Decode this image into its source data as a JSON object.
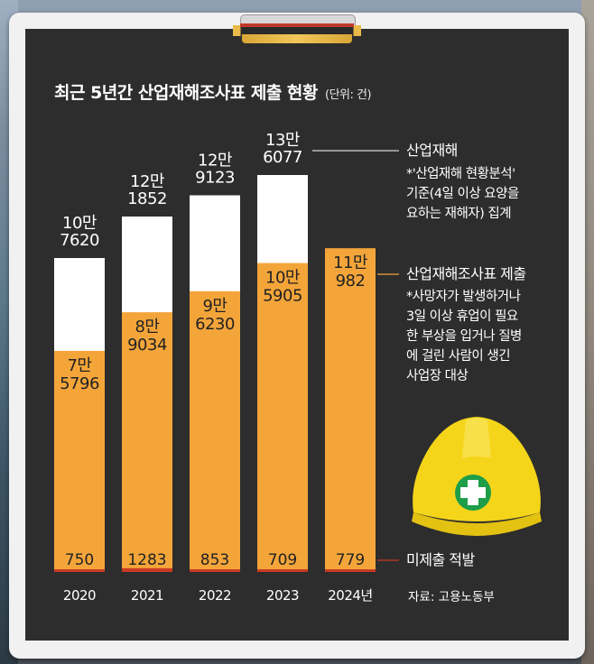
{
  "chart_data": {
    "type": "bar",
    "title": "최근 5년간 산업재해조사표 제출 현황",
    "unit": "(단위: 건)",
    "categories": [
      "2020",
      "2021",
      "2022",
      "2023",
      "2024년"
    ],
    "series": [
      {
        "name": "산업재해",
        "values": [
          107620,
          121852,
          129123,
          136077,
          null
        ],
        "labels": [
          [
            "10만",
            "7620"
          ],
          [
            "12만",
            "1852"
          ],
          [
            "12만",
            "9123"
          ],
          [
            "13만",
            "6077"
          ],
          null
        ]
      },
      {
        "name": "산업재해조사표 제출",
        "values": [
          75796,
          89034,
          96230,
          105905,
          110982
        ],
        "labels": [
          [
            "7만",
            "5796"
          ],
          [
            "8만",
            "9034"
          ],
          [
            "9만",
            "6230"
          ],
          [
            "10만",
            "5905"
          ],
          [
            "11만",
            "982"
          ]
        ]
      },
      {
        "name": "미제출 적발",
        "values": [
          750,
          1283,
          853,
          709,
          779
        ],
        "labels": [
          "750",
          "1283",
          "853",
          "709",
          "779"
        ]
      }
    ],
    "legend": {
      "injury": {
        "label": "산업재해",
        "note": [
          "*'산업재해 현황분석'",
          "기준(4일 이상 요양을",
          "요하는 재해자) 집계"
        ]
      },
      "report": {
        "label": "산업재해조사표 제출",
        "note": [
          "*사망자가 발생하거나",
          "3일 이상 휴업이 필요",
          "한 부상을 입거나 질병",
          "에 걸린 사람이 생긴",
          "사업장 대상"
        ]
      },
      "caught": {
        "label": "미제출 적발"
      }
    },
    "source": "자료: 고용노동부",
    "ylim": [
      0,
      140000
    ],
    "grid": false
  },
  "colors": {
    "panel": "#2d2d2d",
    "injury_bar": "#ffffff",
    "report_bar": "#f3a53a",
    "caught_bar": "#c83a24",
    "text_light": "#ffffff",
    "text_dark": "#222222",
    "helmet": "#f5d51a"
  },
  "icons": {
    "helmet": "hard-hat-icon",
    "clip": "clipboard-clip-icon"
  }
}
